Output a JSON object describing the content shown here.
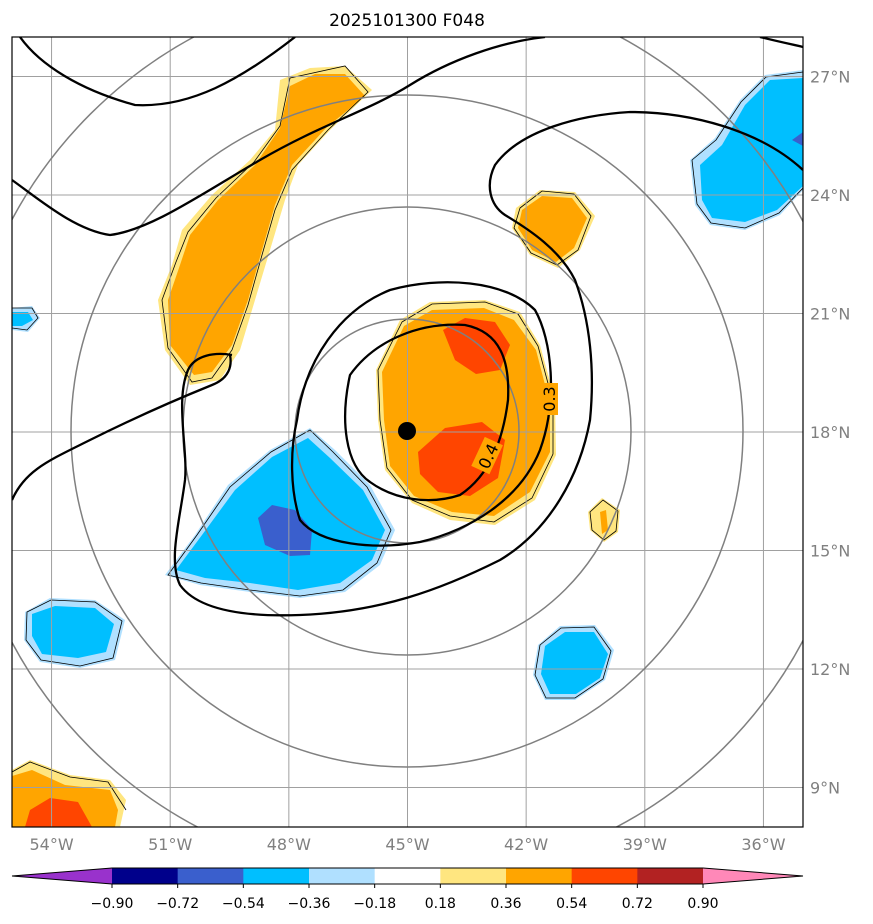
{
  "title": "2025101300 F048",
  "chart_data": {
    "type": "map",
    "map_projection": "lat-lon",
    "lon_range": [
      -55,
      -35
    ],
    "lat_range": [
      8,
      28
    ],
    "lon_ticks": [
      {
        "value": -54,
        "label": "54°W"
      },
      {
        "value": -51,
        "label": "51°W"
      },
      {
        "value": -48,
        "label": "48°W"
      },
      {
        "value": -45,
        "label": "45°W"
      },
      {
        "value": -42,
        "label": "42°W"
      },
      {
        "value": -39,
        "label": "39°W"
      },
      {
        "value": -36,
        "label": "36°W"
      }
    ],
    "lat_ticks": [
      {
        "value": 27,
        "label": "27°N"
      },
      {
        "value": 24,
        "label": "24°N"
      },
      {
        "value": 21,
        "label": "21°N"
      },
      {
        "value": 18,
        "label": "18°N"
      },
      {
        "value": 15,
        "label": "15°N"
      },
      {
        "value": 12,
        "label": "12°N"
      },
      {
        "value": 9,
        "label": "9°N"
      }
    ],
    "storm_center": {
      "lon": -45.0,
      "lat": 17.6
    },
    "range_rings": "concentric distance rings around storm center",
    "contour_labels": [
      {
        "text": "0.3",
        "lon": -41.8,
        "lat": 18.5
      },
      {
        "text": "0.4",
        "lon": -43.0,
        "lat": 17.2
      }
    ],
    "colorbar": {
      "levels": [
        -0.9,
        -0.72,
        -0.54,
        -0.36,
        -0.18,
        0.18,
        0.36,
        0.54,
        0.72,
        0.9
      ],
      "tick_labels": [
        "−0.90",
        "−0.72",
        "−0.54",
        "−0.36",
        "−0.18",
        "0.18",
        "0.36",
        "0.54",
        "0.72",
        "0.90"
      ],
      "colors": [
        "#9932cc",
        "#00008b",
        "#3a5fcd",
        "#00bfff",
        "#b0e0ff",
        "#ffffff",
        "#ffe680",
        "#ffa500",
        "#ff4500",
        "#b22222",
        "#ff88b8"
      ],
      "extend": "both"
    }
  }
}
